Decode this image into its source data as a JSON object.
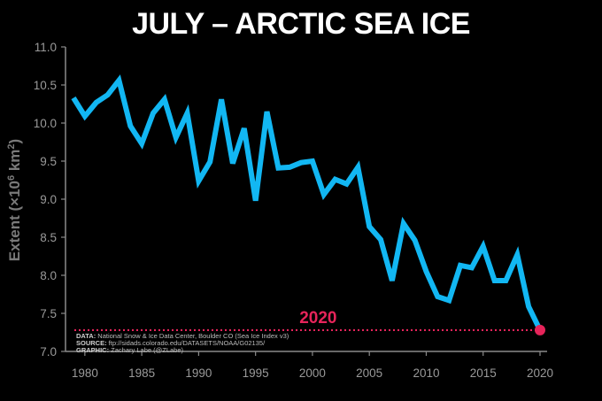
{
  "chart_data": {
    "type": "line",
    "title": "JULY – ARCTIC SEA ICE",
    "ylabel_text": "Extent (×10",
    "ylabel_sup1": "6",
    "ylabel_mid": " km",
    "ylabel_sup2": "2",
    "ylabel_end": ")",
    "xlim": [
      1979,
      2020
    ],
    "ylim": [
      7.0,
      11.0
    ],
    "xticks": [
      1980,
      1985,
      1990,
      1995,
      2000,
      2005,
      2010,
      2015,
      2020
    ],
    "yticks": [
      "7.0",
      "7.5",
      "8.0",
      "8.5",
      "9.0",
      "9.5",
      "10.0",
      "10.5",
      "11.0"
    ],
    "x": [
      1979,
      1980,
      1981,
      1982,
      1983,
      1984,
      1985,
      1986,
      1987,
      1988,
      1989,
      1990,
      1991,
      1992,
      1993,
      1994,
      1995,
      1996,
      1997,
      1998,
      1999,
      2000,
      2001,
      2002,
      2003,
      2004,
      2005,
      2006,
      2007,
      2008,
      2009,
      2010,
      2011,
      2012,
      2013,
      2014,
      2015,
      2016,
      2017,
      2018,
      2019,
      2020
    ],
    "values": [
      10.33,
      10.09,
      10.27,
      10.37,
      10.56,
      9.96,
      9.73,
      10.13,
      10.31,
      9.81,
      10.13,
      9.24,
      9.49,
      10.31,
      9.47,
      9.93,
      8.98,
      10.15,
      9.41,
      9.42,
      9.48,
      9.5,
      9.06,
      9.26,
      9.2,
      9.42,
      8.64,
      8.47,
      7.93,
      8.68,
      8.46,
      8.05,
      7.72,
      7.67,
      8.13,
      8.1,
      8.38,
      7.93,
      7.93,
      8.27,
      7.59,
      7.28
    ],
    "line_color": "#12b7f3",
    "highlight": {
      "year": 2020,
      "value": 7.28,
      "label": "2020",
      "color": "#e6245a"
    },
    "credits": [
      {
        "key": "DATA:",
        "text": " National Snow & Ice Data Center, Boulder CO (Sea Ice Index v3)"
      },
      {
        "key": "SOURCE:",
        "text": " ftp://sidads.colorado.edu/DATASETS/NOAA/G02135/"
      },
      {
        "key": "GRAPHIC:",
        "text": " Zachary Labe (@ZLabe)"
      }
    ],
    "grid": false,
    "background": "#000000"
  }
}
